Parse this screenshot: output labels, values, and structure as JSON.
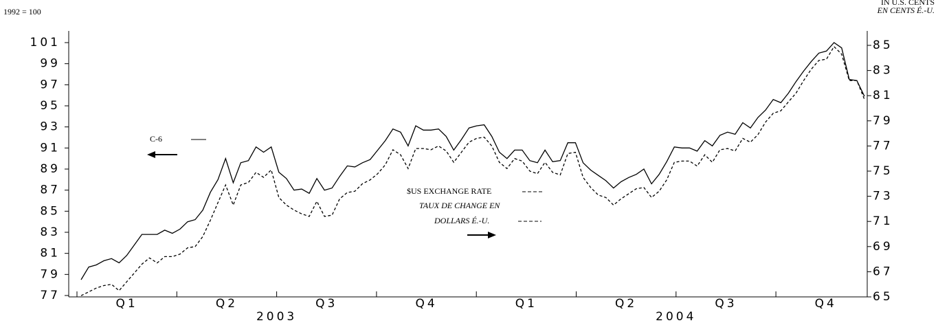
{
  "chart_data": {
    "type": "line",
    "axis_note_left": "1992 = 100",
    "axis_note_right": [
      "IN U.S. CENTS",
      "EN CENTS É.-U."
    ],
    "quarters": [
      "Q1",
      "Q2",
      "Q3",
      "Q4",
      "Q1",
      "Q2",
      "Q3",
      "Q4"
    ],
    "years": [
      "2003",
      "2004"
    ],
    "ylim": [
      77,
      101
    ],
    "yticks": [
      77,
      79,
      81,
      83,
      85,
      87,
      89,
      91,
      93,
      95,
      97,
      99,
      101
    ],
    "y2lim": [
      65,
      85
    ],
    "y2ticks": [
      65,
      67,
      69,
      71,
      73,
      75,
      77,
      79,
      81,
      83,
      85
    ],
    "series": [
      {
        "name": "C-6",
        "color": "#000000",
        "dash": false,
        "axis": "y",
        "values": [
          78.5,
          79.7,
          79.9,
          80.3,
          80.5,
          80.1,
          80.8,
          81.8,
          82.8,
          82.8,
          82.8,
          83.2,
          82.9,
          83.3,
          84.0,
          84.2,
          85.1,
          86.8,
          88.0,
          90.0,
          87.7,
          89.6,
          89.8,
          91.1,
          90.6,
          91.1,
          88.7,
          88.1,
          87.0,
          87.1,
          86.7,
          88.1,
          87.0,
          87.2,
          88.3,
          89.3,
          89.2,
          89.6,
          89.9,
          90.8,
          91.7,
          92.8,
          92.5,
          91.2,
          93.1,
          92.7,
          92.7,
          92.8,
          92.1,
          90.8,
          91.8,
          92.9,
          93.1,
          93.2,
          92.1,
          90.6,
          90.0,
          90.8,
          90.8,
          89.8,
          89.6,
          90.8,
          89.7,
          89.8,
          91.5,
          91.5,
          89.6,
          88.9,
          88.4,
          87.9,
          87.2,
          87.8,
          88.2,
          88.5,
          89.0,
          87.6,
          88.5,
          89.7,
          91.1,
          91.0,
          91.0,
          90.7,
          91.7,
          91.2,
          92.2,
          92.5,
          92.3,
          93.4,
          92.9,
          93.9,
          94.6,
          95.6,
          95.3,
          96.2,
          97.3,
          98.3,
          99.2,
          100.0,
          100.2,
          101.0,
          100.5,
          97.5,
          97.4,
          95.9
        ]
      },
      {
        "name": "$US EXCHANGE RATE",
        "name_fr": [
          "TAUX DE CHANGE EN",
          "DOLLARS É.-U."
        ],
        "color": "#000000",
        "dash": true,
        "axis": "y2",
        "values": [
          65.1,
          65.4,
          65.7,
          65.9,
          66.0,
          65.5,
          66.2,
          66.9,
          67.6,
          68.1,
          67.7,
          68.2,
          68.2,
          68.4,
          68.9,
          69.0,
          69.8,
          71.1,
          72.5,
          73.9,
          72.3,
          73.9,
          74.1,
          74.9,
          74.5,
          75.1,
          72.9,
          72.3,
          71.9,
          71.6,
          71.4,
          72.6,
          71.4,
          71.5,
          72.8,
          73.3,
          73.4,
          74.0,
          74.3,
          74.8,
          75.5,
          76.7,
          76.3,
          75.2,
          76.8,
          76.8,
          76.7,
          77.0,
          76.6,
          75.7,
          76.5,
          77.3,
          77.6,
          77.7,
          77.0,
          75.7,
          75.2,
          76.0,
          75.8,
          75.0,
          74.8,
          75.7,
          74.9,
          74.7,
          76.4,
          76.5,
          74.5,
          73.7,
          73.1,
          72.9,
          72.3,
          72.8,
          73.2,
          73.6,
          73.7,
          72.9,
          73.4,
          74.3,
          75.7,
          75.8,
          75.8,
          75.4,
          76.3,
          75.7,
          76.7,
          76.8,
          76.6,
          77.6,
          77.3,
          77.9,
          78.9,
          79.6,
          79.8,
          80.5,
          81.2,
          82.2,
          83.1,
          83.8,
          83.9,
          84.9,
          84.3,
          82.2,
          82.2,
          80.7
        ]
      }
    ]
  }
}
